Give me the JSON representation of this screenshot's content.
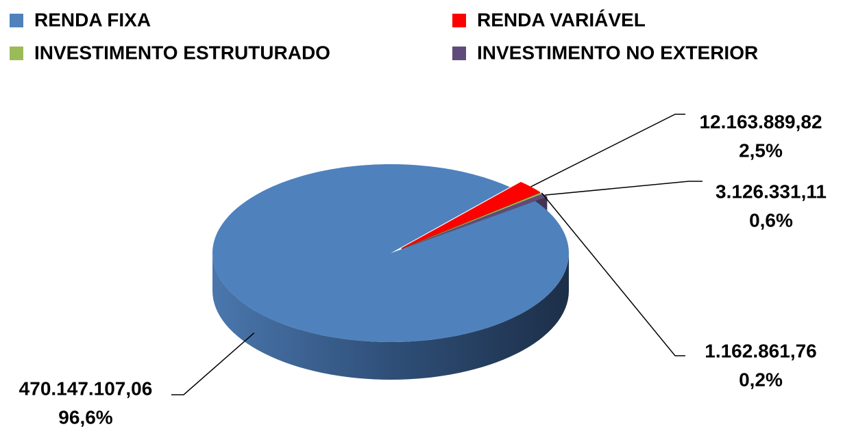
{
  "chart_data": {
    "type": "pie",
    "categories": [
      "RENDA FIXA",
      "RENDA VARIÁVEL",
      "INVESTIMENTO ESTRUTURADO",
      "INVESTIMENTO NO EXTERIOR"
    ],
    "values": [
      470147107.06,
      12163889.82,
      1162861.76,
      3126331.11
    ],
    "value_labels": [
      "470.147.107,06",
      "12.163.889,82",
      "1.162.861,76",
      "3.126.331,11"
    ],
    "percents": [
      96.6,
      2.5,
      0.2,
      0.6
    ],
    "percent_labels": [
      "96,6%",
      "2,5%",
      "0,2%",
      "0,6%"
    ],
    "colors": [
      "#4f81bd",
      "#ff0000",
      "#9bbb59",
      "#604a7b"
    ],
    "legend": "top"
  }
}
